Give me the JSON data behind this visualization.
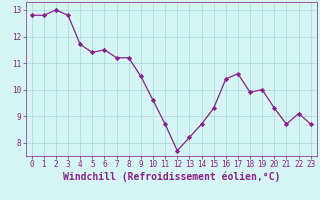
{
  "x": [
    0,
    1,
    2,
    3,
    4,
    5,
    6,
    7,
    8,
    9,
    10,
    11,
    12,
    13,
    14,
    15,
    16,
    17,
    18,
    19,
    20,
    21,
    22,
    23
  ],
  "y": [
    12.8,
    12.8,
    13.0,
    12.8,
    11.7,
    11.4,
    11.5,
    11.2,
    11.2,
    10.5,
    9.6,
    8.7,
    7.7,
    8.2,
    8.7,
    9.3,
    10.4,
    10.6,
    9.9,
    10.0,
    9.3,
    8.7,
    9.1,
    8.7
  ],
  "line_color": "#882288",
  "marker": "D",
  "marker_size": 2.2,
  "bg_color": "#d6f5f5",
  "grid_color": "#aad8d8",
  "xlabel": "Windchill (Refroidissement éolien,°C)",
  "xlabel_color": "#882288",
  "ylim": [
    7.5,
    13.3
  ],
  "xlim": [
    -0.5,
    23.5
  ],
  "yticks": [
    8,
    9,
    10,
    11,
    12,
    13
  ],
  "xticks": [
    0,
    1,
    2,
    3,
    4,
    5,
    6,
    7,
    8,
    9,
    10,
    11,
    12,
    13,
    14,
    15,
    16,
    17,
    18,
    19,
    20,
    21,
    22,
    23
  ],
  "tick_color": "#882288",
  "tick_fontsize": 5.5,
  "xlabel_fontsize": 7.0,
  "linewidth": 0.9
}
